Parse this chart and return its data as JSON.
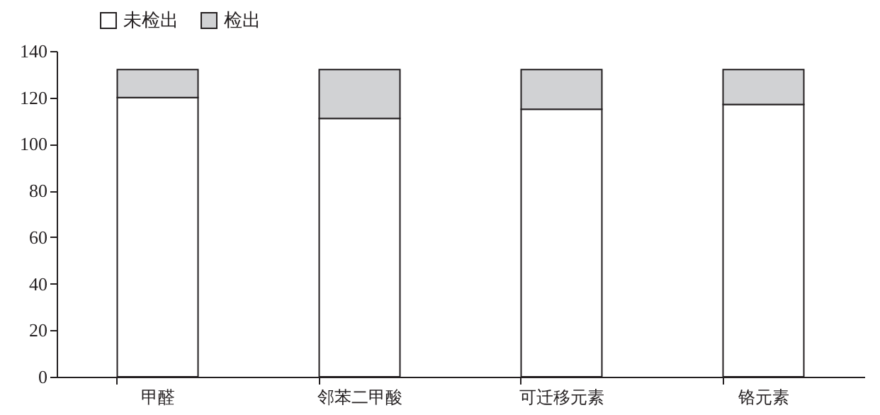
{
  "chart_data": {
    "type": "bar",
    "stacked": true,
    "categories": [
      "甲醛",
      "邻苯二甲酸",
      "可迁移元素",
      "铬元素"
    ],
    "series": [
      {
        "name": "未检出",
        "color": "#ffffff",
        "values": [
          120,
          111,
          115,
          117
        ]
      },
      {
        "name": "检出",
        "color": "#d1d2d4",
        "values": [
          12,
          21,
          17,
          15
        ]
      }
    ],
    "ylim": [
      0,
      140
    ],
    "yticks": [
      0,
      20,
      40,
      60,
      80,
      100,
      120,
      140
    ],
    "grid": false,
    "legend": "top left"
  }
}
